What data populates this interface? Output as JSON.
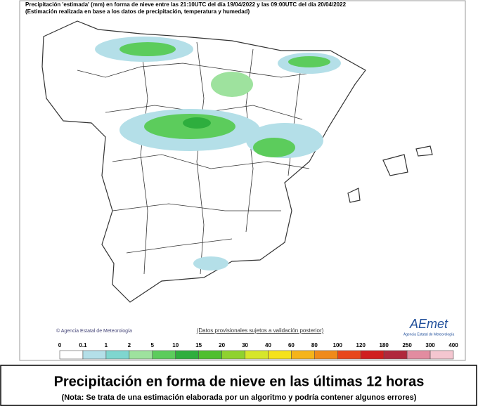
{
  "header": {
    "line1": "Precipitación 'estimada' (mm) en forma de nieve entre las 21:10UTC del día 19/04/2022 y las 09:00UTC del día 20/04/2022",
    "line2": "(Estimación realizada en base a los datos de precipitación, temperatura y humedad)"
  },
  "map": {
    "credit": "© Agencia Estatal de Meteorología",
    "disclaimer": "(Datos provisionales sujetos a validación posterior)",
    "logo": "AEmet",
    "logo_caption": "Agencia Estatal de Meteorología"
  },
  "legend": {
    "ticks": [
      0,
      0.1,
      1,
      2,
      5,
      10,
      15,
      20,
      30,
      40,
      60,
      80,
      100,
      120,
      180,
      250,
      300,
      400
    ],
    "colors": [
      "#ffffff",
      "#b4dfe8",
      "#7fd6cf",
      "#9ee29e",
      "#5ccc5c",
      "#2eae3e",
      "#4fbf2f",
      "#8fd22f",
      "#d6e62b",
      "#f5e21a",
      "#f5b41a",
      "#f08a1a",
      "#e8461a",
      "#d01e1e",
      "#b0283c",
      "#e28ca0",
      "#f4c6d0"
    ]
  },
  "footer": {
    "title": "Precipitación en forma de nieve en las últimas 12 horas",
    "note": "(Nota: Se trata de una estimación elaborada por un algoritmo y podría contener algunos errores)"
  }
}
